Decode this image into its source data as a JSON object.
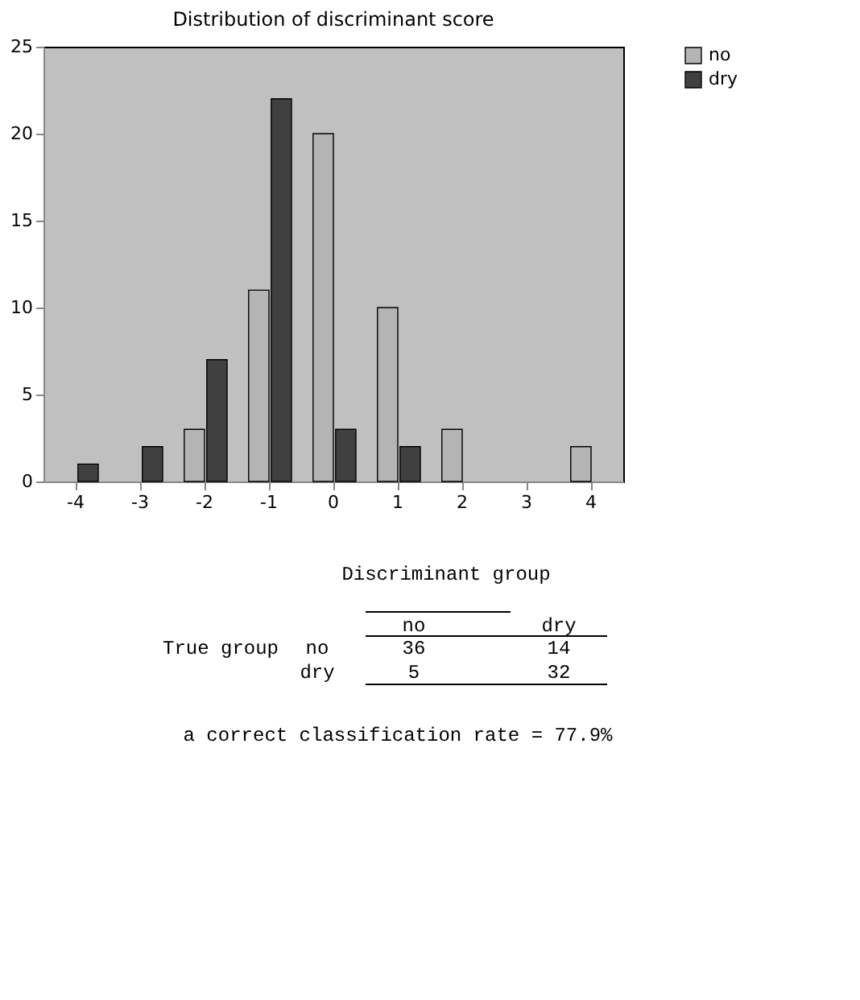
{
  "chart_data": {
    "type": "bar",
    "title": "Distribution of discriminant score",
    "categories": [
      "-4",
      "-3",
      "-2",
      "-1",
      "0",
      "1",
      "2",
      "3",
      "4"
    ],
    "series": [
      {
        "name": "no",
        "color": "#b4b4b4",
        "values": [
          0,
          0,
          3,
          11,
          20,
          10,
          3,
          0,
          2
        ]
      },
      {
        "name": "dry",
        "color": "#404040",
        "values": [
          1,
          2,
          7,
          22,
          3,
          2,
          0,
          0,
          0
        ]
      }
    ],
    "ylim": [
      0,
      25
    ],
    "yticks": [
      0,
      5,
      10,
      15,
      20,
      25
    ],
    "grid": false,
    "legend": "right",
    "annotations": [
      "Discriminant group",
      "no",
      "dry",
      "True group",
      "no",
      "36",
      "14",
      "dry",
      "5",
      "32",
      "a correct classification rate = 77.9%"
    ]
  }
}
